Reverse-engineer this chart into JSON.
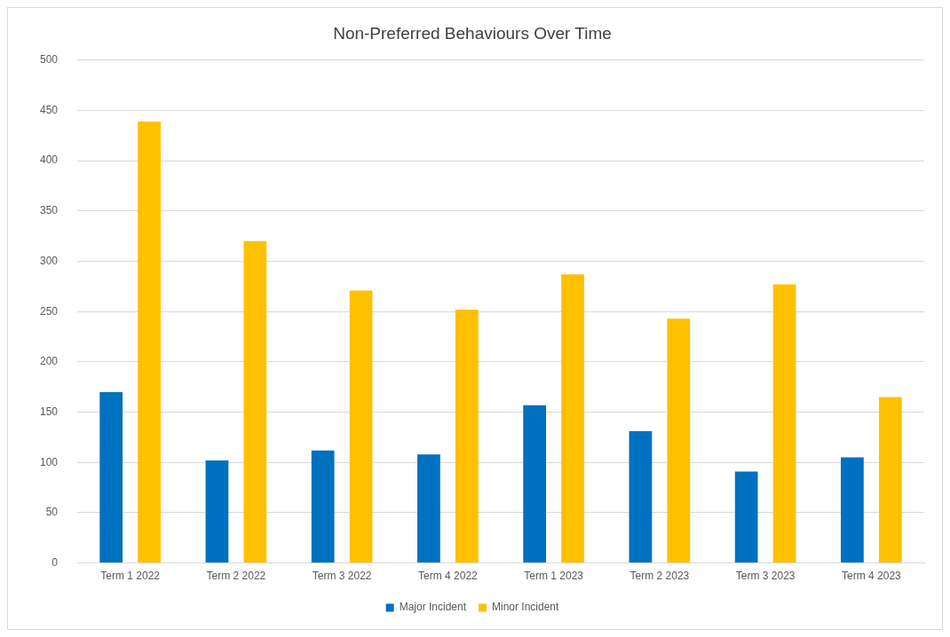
{
  "chart_data": {
    "type": "bar",
    "title": "Non-Preferred Behaviours Over Time",
    "categories": [
      "Term 1 2022",
      "Term 2 2022",
      "Term 3 2022",
      "Term 4 2022",
      "Term 1 2023",
      "Term 2 2023",
      "Term 3 2023",
      "Term 4 2023"
    ],
    "series": [
      {
        "name": "Major Incident",
        "color": "#0070c0",
        "values": [
          170,
          102,
          112,
          108,
          157,
          131,
          91,
          105
        ]
      },
      {
        "name": "Minor Incident",
        "color": "#ffc000",
        "values": [
          439,
          320,
          271,
          252,
          287,
          243,
          277,
          165
        ]
      }
    ],
    "ylim": [
      0,
      500
    ],
    "yticks": [
      0,
      50,
      100,
      150,
      200,
      250,
      300,
      350,
      400,
      450,
      500
    ],
    "grid": "y",
    "legend": "bottom"
  }
}
